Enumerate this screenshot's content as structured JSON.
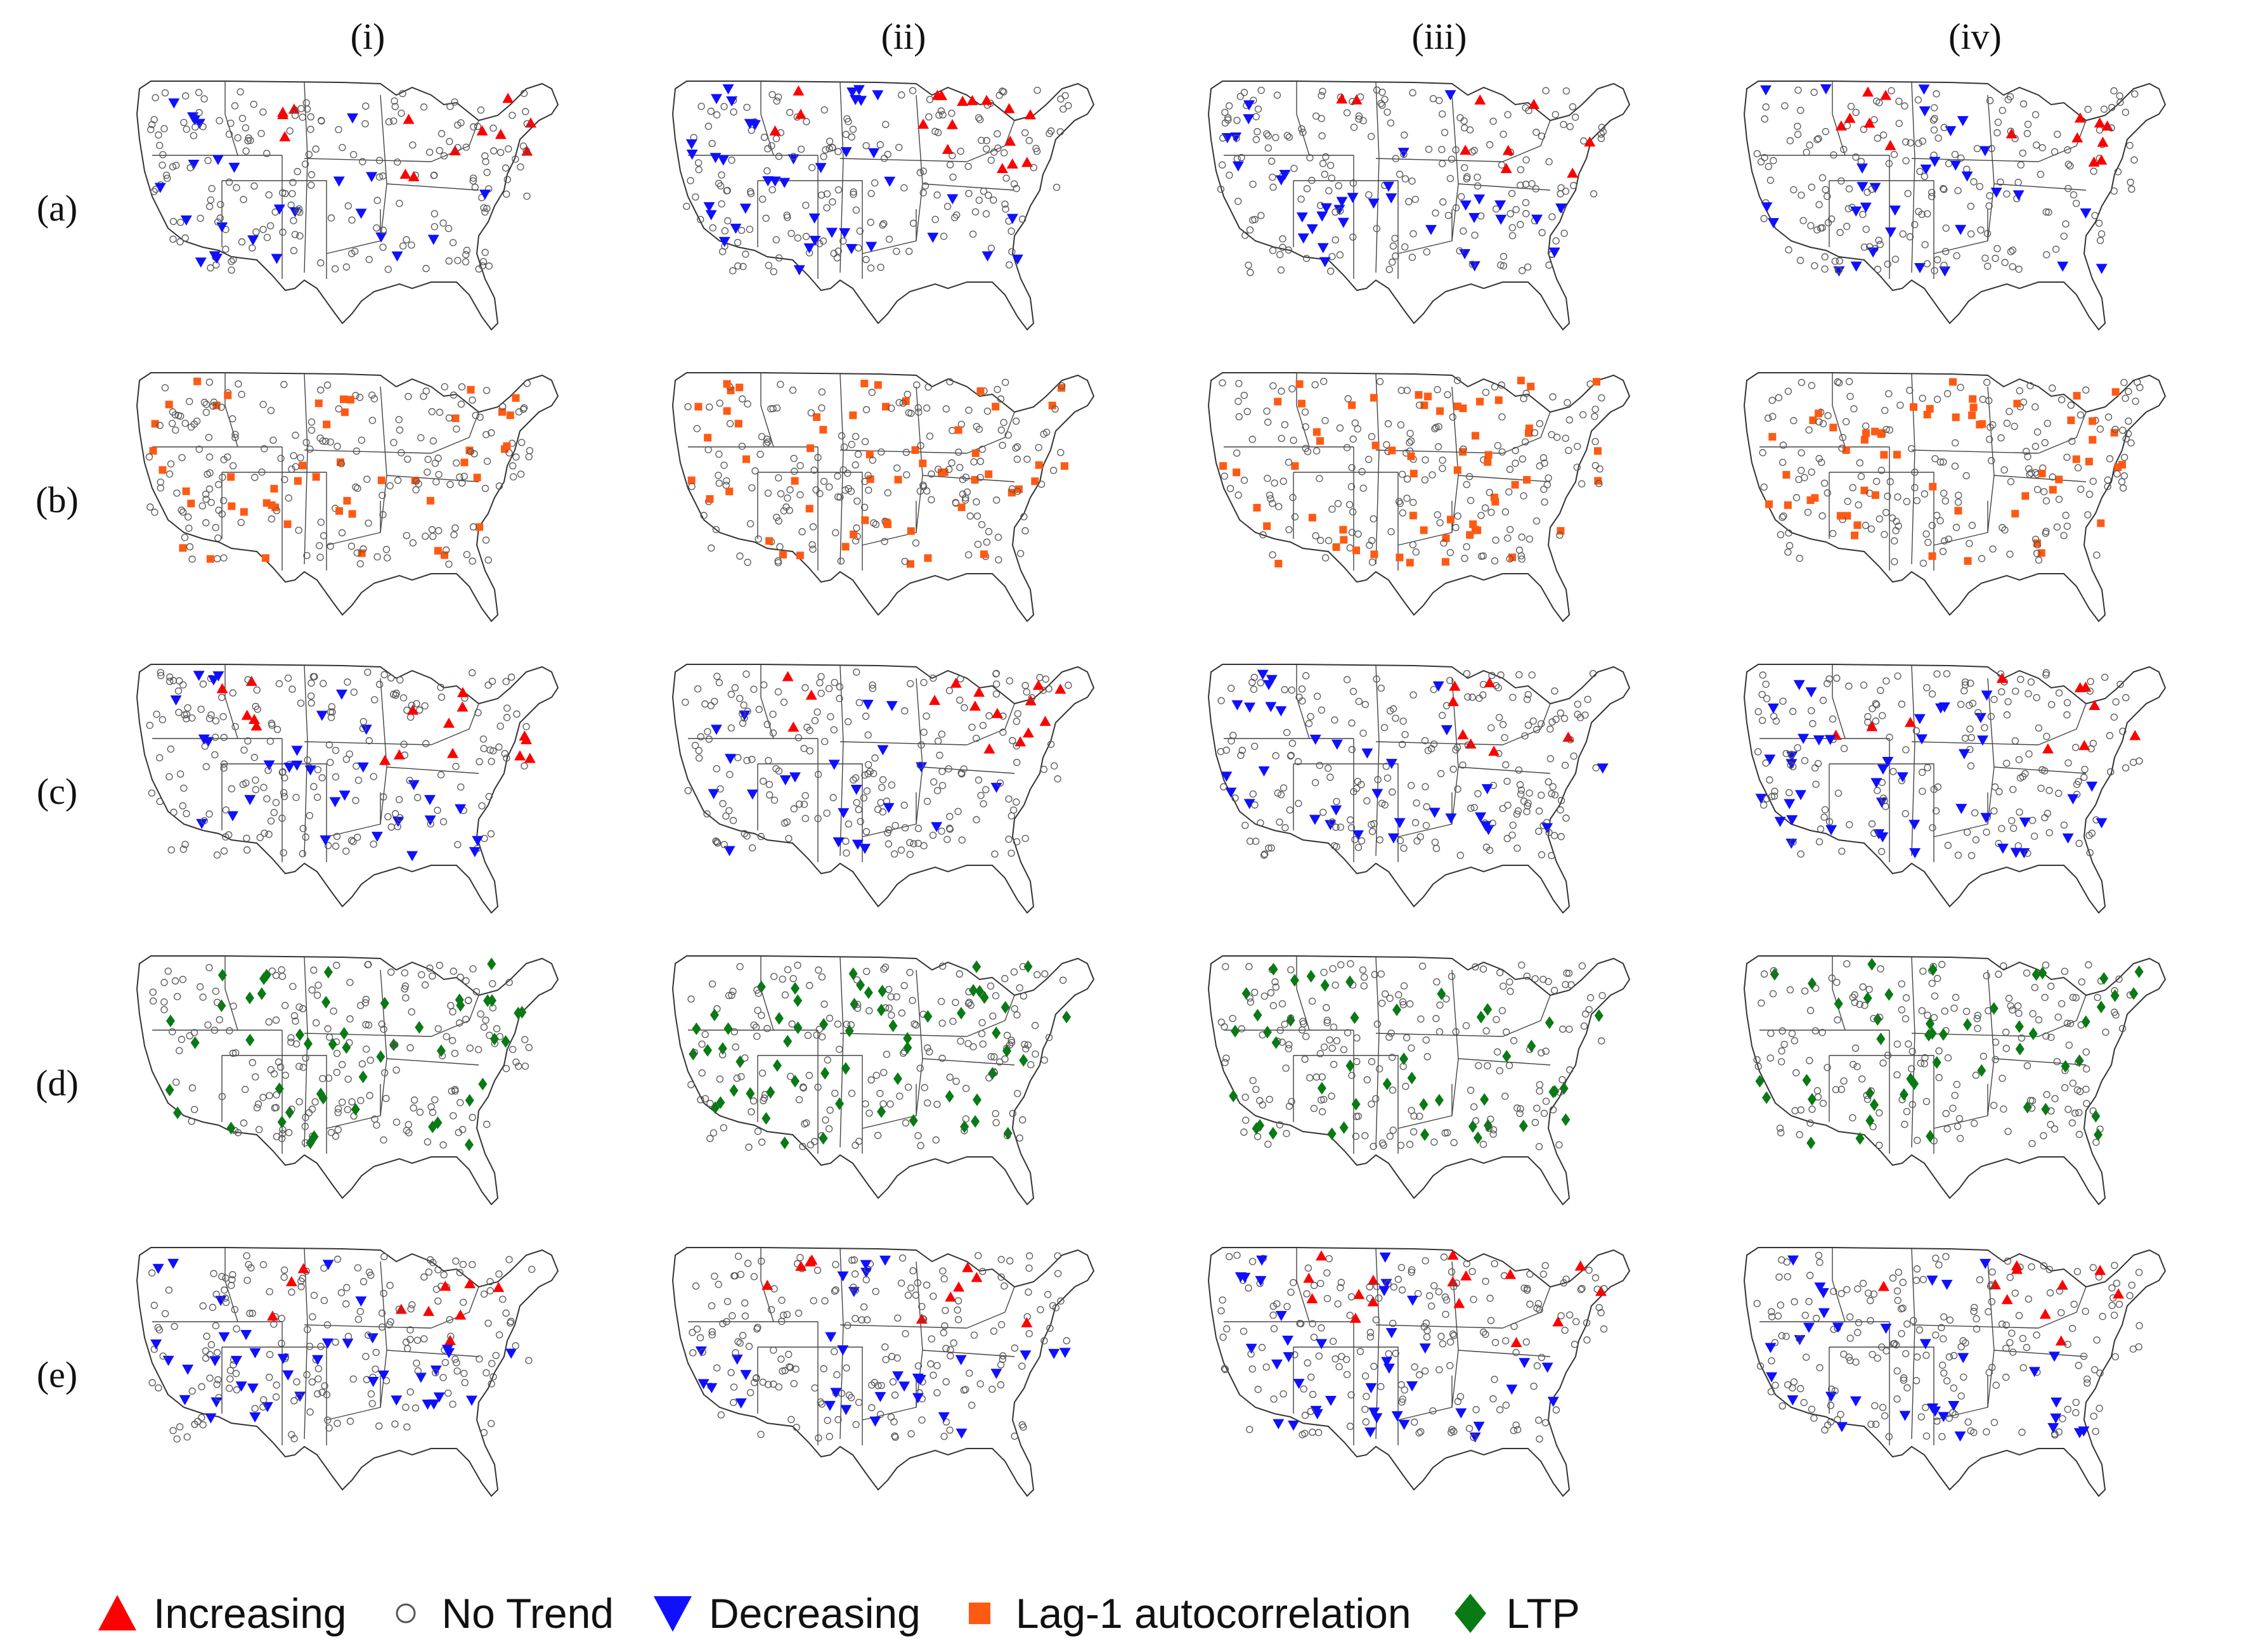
{
  "columns": [
    "(i)",
    "(ii)",
    "(iii)",
    "(iv)"
  ],
  "rows": [
    "(a)",
    "(b)",
    "(c)",
    "(d)",
    "(e)"
  ],
  "legend": [
    {
      "id": "increasing",
      "label": "Increasing",
      "symbol": "triangle-up",
      "color": "#ff0000"
    },
    {
      "id": "no_trend",
      "label": "No Trend",
      "symbol": "circle-open",
      "color": "#555555"
    },
    {
      "id": "decreasing",
      "label": "Decreasing",
      "symbol": "triangle-down",
      "color": "#1010ff"
    },
    {
      "id": "lag1",
      "label": "Lag-1 autocorrelation",
      "symbol": "square",
      "color": "#ff5a14"
    },
    {
      "id": "ltp",
      "label": "LTP",
      "symbol": "diamond",
      "color": "#0a7a14"
    }
  ],
  "row_marker_types": {
    "(a)": [
      "increasing",
      "decreasing"
    ],
    "(b)": [
      "lag1"
    ],
    "(c)": [
      "increasing",
      "decreasing"
    ],
    "(d)": [
      "ltp"
    ],
    "(e)": [
      "increasing",
      "decreasing"
    ]
  }
}
